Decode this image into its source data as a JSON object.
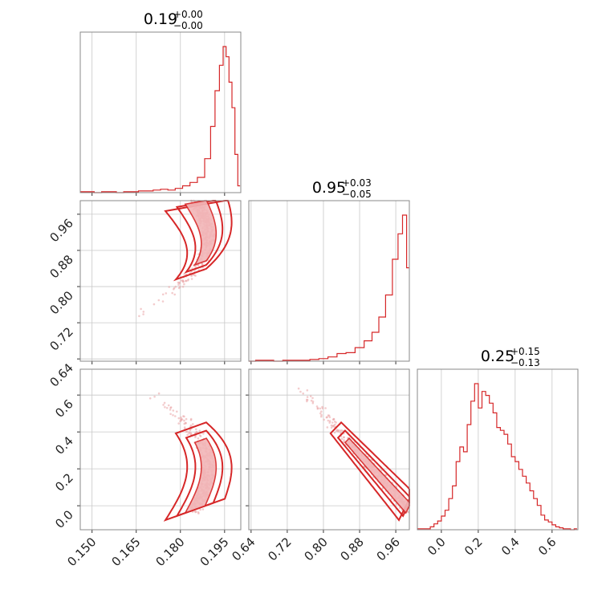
{
  "chart_data": {
    "type": "corner",
    "color": "#d62728",
    "parameters": [
      {
        "title_value": "0.19",
        "title_plus": "+0.00",
        "title_minus": "−0.00",
        "range": [
          0.146,
          0.2005
        ],
        "ticks": [
          "0.150",
          "0.165",
          "0.180",
          "0.195"
        ],
        "tick_values": [
          0.15,
          0.165,
          0.18,
          0.195
        ]
      },
      {
        "title_value": "0.95",
        "title_plus": "+0.03",
        "title_minus": "−0.05",
        "range": [
          0.635,
          0.99
        ],
        "ticks": [
          "0.64",
          "0.72",
          "0.80",
          "0.88",
          "0.96"
        ],
        "tick_values": [
          0.64,
          0.72,
          0.8,
          0.88,
          0.96
        ]
      },
      {
        "title_value": "0.25",
        "title_plus": "+0.15",
        "title_minus": "−0.13",
        "range": [
          -0.13,
          0.74
        ],
        "ticks": [
          "0.0",
          "0.2",
          "0.4",
          "0.6"
        ],
        "tick_values": [
          0.0,
          0.2,
          0.4,
          0.6
        ]
      }
    ],
    "histograms": [
      {
        "bin_centers": [
          0.147,
          0.1495,
          0.152,
          0.1545,
          0.157,
          0.1595,
          0.162,
          0.1645,
          0.167,
          0.1695,
          0.172,
          0.1745,
          0.177,
          0.1795,
          0.182,
          0.1845,
          0.187,
          0.1895,
          0.191,
          0.1925,
          0.194,
          0.195,
          0.196,
          0.197,
          0.198,
          0.199,
          0.2
        ],
        "counts": [
          1,
          1,
          0,
          1,
          1,
          0,
          1,
          1,
          2,
          2,
          3,
          4,
          3,
          5,
          8,
          12,
          18,
          40,
          78,
          120,
          150,
          172,
          160,
          130,
          100,
          45,
          8
        ]
      },
      {
        "bin_centers": [
          0.64,
          0.66,
          0.68,
          0.7,
          0.72,
          0.74,
          0.76,
          0.78,
          0.8,
          0.82,
          0.84,
          0.86,
          0.88,
          0.9,
          0.915,
          0.93,
          0.945,
          0.96,
          0.97,
          0.98,
          0.988
        ],
        "counts": [
          0,
          1,
          1,
          0,
          1,
          1,
          1,
          2,
          3,
          5,
          9,
          10,
          16,
          24,
          34,
          52,
          78,
          120,
          150,
          172,
          110
        ],
        "bin_centers_note": ""
      },
      {
        "bin_centers": [
          -0.11,
          -0.09,
          -0.07,
          -0.05,
          -0.03,
          -0.01,
          0.01,
          0.03,
          0.05,
          0.07,
          0.09,
          0.11,
          0.13,
          0.15,
          0.17,
          0.19,
          0.21,
          0.23,
          0.25,
          0.27,
          0.29,
          0.31,
          0.33,
          0.35,
          0.37,
          0.39,
          0.41,
          0.43,
          0.45,
          0.47,
          0.49,
          0.51,
          0.53,
          0.55,
          0.57,
          0.59,
          0.61,
          0.63,
          0.65,
          0.67,
          0.69,
          0.71,
          0.73
        ],
        "counts": [
          1,
          1,
          1,
          3,
          6,
          9,
          14,
          20,
          32,
          45,
          70,
          85,
          80,
          108,
          132,
          150,
          125,
          142,
          138,
          130,
          120,
          105,
          102,
          98,
          88,
          75,
          70,
          62,
          55,
          48,
          40,
          32,
          25,
          15,
          10,
          8,
          5,
          3,
          2,
          1,
          1,
          0,
          1
        ]
      }
    ]
  }
}
